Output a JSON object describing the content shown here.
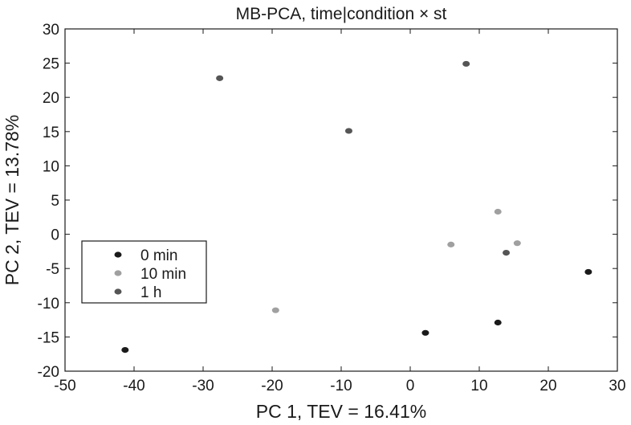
{
  "chart_data": {
    "type": "scatter",
    "title": "MB-PCA, time|condition × st",
    "xlabel": "PC 1, TEV = 16.41%",
    "ylabel": "PC 2, TEV = 13.78%",
    "xlim": [
      -50,
      30
    ],
    "ylim": [
      -20,
      30
    ],
    "xticks": [
      -50,
      -40,
      -30,
      -20,
      -10,
      0,
      10,
      20,
      30
    ],
    "yticks": [
      -20,
      -15,
      -10,
      -5,
      0,
      5,
      10,
      15,
      20,
      25,
      30
    ],
    "grid": false,
    "legend_position": "center-left",
    "series": [
      {
        "name": "0 min",
        "color": "#1a1a1a",
        "points": [
          [
            -41.3,
            -16.9
          ],
          [
            2.2,
            -14.4
          ],
          [
            12.7,
            -12.9
          ],
          [
            25.8,
            -5.5
          ]
        ]
      },
      {
        "name": "10 min",
        "color": "#a0a0a0",
        "points": [
          [
            -19.5,
            -11.1
          ],
          [
            5.9,
            -1.5
          ],
          [
            12.7,
            3.3
          ],
          [
            15.5,
            -1.3
          ]
        ]
      },
      {
        "name": "1 h",
        "color": "#555555",
        "points": [
          [
            -27.6,
            22.8
          ],
          [
            -8.9,
            15.1
          ],
          [
            8.1,
            24.9
          ],
          [
            13.9,
            -2.7
          ]
        ]
      }
    ]
  }
}
